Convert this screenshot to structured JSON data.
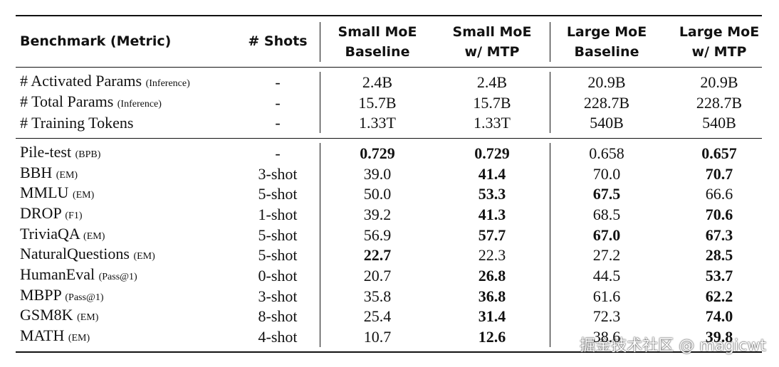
{
  "header": {
    "benchmark": "Benchmark (Metric)",
    "shots": "# Shots",
    "columns": [
      [
        "Small MoE",
        "Baseline"
      ],
      [
        "Small MoE",
        "w/ MTP"
      ],
      [
        "Large MoE",
        "Baseline"
      ],
      [
        "Large MoE",
        "w/ MTP"
      ]
    ]
  },
  "groups": [
    {
      "rows": [
        {
          "name": "# Activated Params",
          "metric": "(Inference)",
          "shots": "-",
          "values": [
            "2.4B",
            "2.4B",
            "20.9B",
            "20.9B"
          ],
          "bold": [
            false,
            false,
            false,
            false
          ]
        },
        {
          "name": "# Total Params",
          "metric": "(Inference)",
          "shots": "-",
          "values": [
            "15.7B",
            "15.7B",
            "228.7B",
            "228.7B"
          ],
          "bold": [
            false,
            false,
            false,
            false
          ]
        },
        {
          "name": "# Training Tokens",
          "metric": null,
          "shots": "-",
          "values": [
            "1.33T",
            "1.33T",
            "540B",
            "540B"
          ],
          "bold": [
            false,
            false,
            false,
            false
          ]
        }
      ]
    },
    {
      "rows": [
        {
          "name": "Pile-test",
          "metric": "(BPB)",
          "shots": "-",
          "values": [
            "0.729",
            "0.729",
            "0.658",
            "0.657"
          ],
          "bold": [
            true,
            true,
            false,
            true
          ]
        },
        {
          "name": "BBH",
          "metric": "(EM)",
          "shots": "3-shot",
          "values": [
            "39.0",
            "41.4",
            "70.0",
            "70.7"
          ],
          "bold": [
            false,
            true,
            false,
            true
          ]
        },
        {
          "name": "MMLU",
          "metric": "(EM)",
          "shots": "5-shot",
          "values": [
            "50.0",
            "53.3",
            "67.5",
            "66.6"
          ],
          "bold": [
            false,
            true,
            true,
            false
          ]
        },
        {
          "name": "DROP",
          "metric": "(F1)",
          "shots": "1-shot",
          "values": [
            "39.2",
            "41.3",
            "68.5",
            "70.6"
          ],
          "bold": [
            false,
            true,
            false,
            true
          ]
        },
        {
          "name": "TriviaQA",
          "metric": "(EM)",
          "shots": "5-shot",
          "values": [
            "56.9",
            "57.7",
            "67.0",
            "67.3"
          ],
          "bold": [
            false,
            true,
            true,
            true
          ]
        },
        {
          "name": "NaturalQuestions",
          "metric": "(EM)",
          "shots": "5-shot",
          "values": [
            "22.7",
            "22.3",
            "27.2",
            "28.5"
          ],
          "bold": [
            true,
            false,
            false,
            true
          ]
        },
        {
          "name": "HumanEval",
          "metric": "(Pass@1)",
          "shots": "0-shot",
          "values": [
            "20.7",
            "26.8",
            "44.5",
            "53.7"
          ],
          "bold": [
            false,
            true,
            false,
            true
          ]
        },
        {
          "name": "MBPP",
          "metric": "(Pass@1)",
          "shots": "3-shot",
          "values": [
            "35.8",
            "36.8",
            "61.6",
            "62.2"
          ],
          "bold": [
            false,
            true,
            false,
            true
          ]
        },
        {
          "name": "GSM8K",
          "metric": "(EM)",
          "shots": "8-shot",
          "values": [
            "25.4",
            "31.4",
            "72.3",
            "74.0"
          ],
          "bold": [
            false,
            true,
            false,
            true
          ]
        },
        {
          "name": "MATH",
          "metric": "(EM)",
          "shots": "4-shot",
          "values": [
            "10.7",
            "12.6",
            "38.6",
            "39.8"
          ],
          "bold": [
            false,
            true,
            false,
            true
          ]
        }
      ]
    }
  ],
  "watermark": "掘金技术社区 @ magicwt"
}
